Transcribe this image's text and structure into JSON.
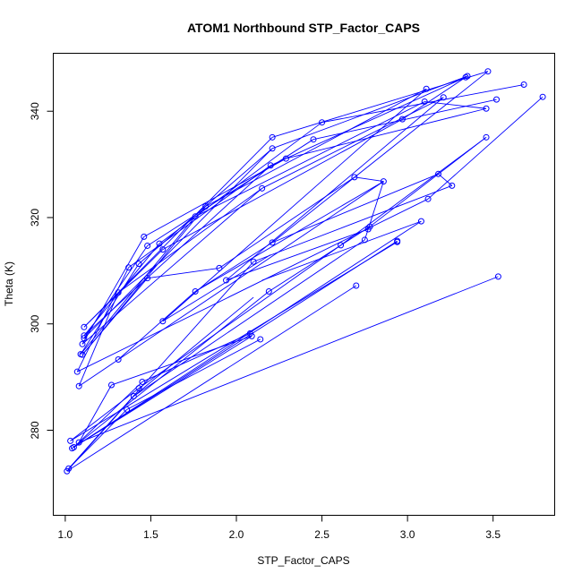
{
  "chart_data": {
    "type": "scatter",
    "title": "ATOM1 Northbound STP_Factor_CAPS",
    "xlabel": "STP_Factor_CAPS",
    "ylabel": "Theta (K)",
    "xlim": [
      0.93,
      3.86
    ],
    "ylim": [
      264.0,
      350.9
    ],
    "xticks": [
      1.0,
      1.5,
      2.0,
      2.5,
      3.0,
      3.5
    ],
    "xtick_labels": [
      "1.0",
      "1.5",
      "2.0",
      "2.5",
      "3.0",
      "3.5"
    ],
    "yticks": [
      280,
      300,
      320,
      340
    ],
    "ytick_labels": [
      "280",
      "300",
      "320",
      "340"
    ],
    "grid": false,
    "legend": "none",
    "series_color": "#0000ff",
    "marker": "open-circle",
    "connect_points": true,
    "points": [
      [
        1.01,
        272.3
      ],
      [
        1.02,
        272.8
      ],
      [
        1.03,
        278.0
      ],
      [
        1.04,
        276.6
      ],
      [
        1.05,
        276.8
      ],
      [
        1.08,
        277.7
      ],
      [
        1.07,
        291.0
      ],
      [
        1.08,
        288.3
      ],
      [
        1.09,
        294.3
      ],
      [
        1.1,
        294.2
      ],
      [
        1.1,
        296.2
      ],
      [
        1.11,
        297.3
      ],
      [
        1.11,
        297.8
      ],
      [
        1.11,
        299.4
      ],
      [
        1.27,
        288.5
      ],
      [
        1.31,
        293.3
      ],
      [
        1.31,
        305.9
      ],
      [
        1.36,
        283.9
      ],
      [
        1.37,
        310.6
      ],
      [
        1.4,
        286.4
      ],
      [
        1.43,
        287.9
      ],
      [
        1.43,
        311.3
      ],
      [
        1.45,
        289.1
      ],
      [
        1.46,
        316.4
      ],
      [
        1.48,
        308.6
      ],
      [
        1.48,
        314.7
      ],
      [
        1.55,
        315.1
      ],
      [
        1.57,
        300.5
      ],
      [
        1.57,
        314.0
      ],
      [
        1.76,
        306.1
      ],
      [
        1.76,
        320.2
      ],
      [
        1.82,
        322.1
      ],
      [
        1.9,
        310.5
      ],
      [
        1.94,
        308.2
      ],
      [
        2.08,
        298.2
      ],
      [
        2.09,
        297.7
      ],
      [
        2.1,
        311.7
      ],
      [
        2.14,
        297.1
      ],
      [
        2.15,
        325.5
      ],
      [
        2.19,
        306.1
      ],
      [
        2.2,
        329.8
      ],
      [
        2.21,
        315.3
      ],
      [
        2.21,
        335.1
      ],
      [
        2.21,
        333.0
      ],
      [
        2.29,
        331.1
      ],
      [
        2.45,
        334.7
      ],
      [
        2.5,
        337.9
      ],
      [
        2.61,
        314.8
      ],
      [
        2.7,
        307.2
      ],
      [
        2.69,
        327.6
      ],
      [
        2.75,
        315.8
      ],
      [
        2.77,
        317.8
      ],
      [
        2.78,
        318.3
      ],
      [
        2.86,
        326.8
      ],
      [
        2.94,
        315.4
      ],
      [
        2.94,
        315.6
      ],
      [
        2.97,
        338.5
      ],
      [
        3.08,
        319.3
      ],
      [
        3.1,
        341.8
      ],
      [
        3.11,
        344.2
      ],
      [
        3.12,
        323.5
      ],
      [
        3.18,
        328.2
      ],
      [
        3.21,
        342.6
      ],
      [
        3.26,
        326.0
      ],
      [
        3.34,
        346.4
      ],
      [
        3.35,
        346.6
      ],
      [
        3.46,
        340.5
      ],
      [
        3.46,
        335.1
      ],
      [
        3.47,
        347.5
      ],
      [
        3.52,
        342.2
      ],
      [
        3.53,
        308.9
      ],
      [
        3.68,
        345.0
      ],
      [
        3.79,
        342.7
      ]
    ],
    "segments": [
      [
        [
          1.01,
          272.3
        ],
        [
          2.7,
          307.2
        ]
      ],
      [
        [
          1.02,
          272.8
        ],
        [
          2.1,
          311.7
        ]
      ],
      [
        [
          1.03,
          278.0
        ],
        [
          2.94,
          315.4
        ]
      ],
      [
        [
          1.04,
          276.6
        ],
        [
          2.94,
          315.6
        ]
      ],
      [
        [
          1.05,
          276.8
        ],
        [
          3.08,
          319.3
        ]
      ],
      [
        [
          1.08,
          277.7
        ],
        [
          3.53,
          308.9
        ]
      ],
      [
        [
          1.04,
          276.6
        ],
        [
          2.19,
          306.1
        ]
      ],
      [
        [
          1.05,
          276.8
        ],
        [
          2.09,
          297.7
        ]
      ],
      [
        [
          1.08,
          277.7
        ],
        [
          1.27,
          288.5
        ]
      ],
      [
        [
          1.02,
          272.8
        ],
        [
          1.36,
          283.9
        ]
      ],
      [
        [
          1.01,
          272.3
        ],
        [
          1.4,
          286.4
        ]
      ],
      [
        [
          1.03,
          278.0
        ],
        [
          1.43,
          287.9
        ]
      ],
      [
        [
          1.05,
          276.8
        ],
        [
          1.45,
          289.1
        ]
      ],
      [
        [
          1.45,
          289.1
        ],
        [
          2.08,
          298.2
        ]
      ],
      [
        [
          1.36,
          283.9
        ],
        [
          2.14,
          297.1
        ]
      ],
      [
        [
          1.43,
          287.9
        ],
        [
          2.61,
          314.8
        ]
      ],
      [
        [
          1.4,
          286.4
        ],
        [
          2.75,
          315.8
        ]
      ],
      [
        [
          1.08,
          288.3
        ],
        [
          2.86,
          326.8
        ]
      ],
      [
        [
          1.07,
          291.0
        ],
        [
          3.12,
          323.5
        ]
      ],
      [
        [
          1.08,
          288.3
        ],
        [
          1.31,
          305.9
        ]
      ],
      [
        [
          1.07,
          291.0
        ],
        [
          1.37,
          310.6
        ]
      ],
      [
        [
          1.09,
          294.3
        ],
        [
          1.43,
          311.3
        ]
      ],
      [
        [
          1.1,
          294.2
        ],
        [
          1.48,
          308.6
        ]
      ],
      [
        [
          1.1,
          296.2
        ],
        [
          1.46,
          316.4
        ]
      ],
      [
        [
          1.11,
          297.3
        ],
        [
          1.48,
          314.7
        ]
      ],
      [
        [
          1.11,
          297.8
        ],
        [
          1.55,
          315.1
        ]
      ],
      [
        [
          1.11,
          299.4
        ],
        [
          1.57,
          314.0
        ]
      ],
      [
        [
          1.09,
          294.3
        ],
        [
          1.76,
          320.2
        ]
      ],
      [
        [
          1.1,
          294.2
        ],
        [
          1.82,
          322.1
        ]
      ],
      [
        [
          1.1,
          296.2
        ],
        [
          2.15,
          325.5
        ]
      ],
      [
        [
          1.11,
          297.3
        ],
        [
          2.21,
          333.0
        ]
      ],
      [
        [
          1.11,
          297.8
        ],
        [
          2.2,
          329.8
        ]
      ],
      [
        [
          1.11,
          299.4
        ],
        [
          2.21,
          335.1
        ]
      ],
      [
        [
          1.57,
          300.5
        ],
        [
          2.2,
          313.0
        ]
      ],
      [
        [
          1.31,
          293.3
        ],
        [
          1.76,
          306.1
        ]
      ],
      [
        [
          1.76,
          306.1
        ],
        [
          2.21,
          315.3
        ]
      ],
      [
        [
          1.48,
          308.6
        ],
        [
          1.9,
          310.5
        ]
      ],
      [
        [
          1.9,
          310.5
        ],
        [
          2.69,
          327.6
        ]
      ],
      [
        [
          1.94,
          308.2
        ],
        [
          2.77,
          317.8
        ]
      ],
      [
        [
          2.15,
          308.2
        ],
        [
          3.08,
          319.3
        ]
      ],
      [
        [
          2.1,
          311.7
        ],
        [
          3.26,
          326.0
        ]
      ],
      [
        [
          2.19,
          306.1
        ],
        [
          2.78,
          318.3
        ]
      ],
      [
        [
          2.21,
          315.3
        ],
        [
          3.18,
          328.2
        ]
      ],
      [
        [
          1.46,
          316.4
        ],
        [
          2.29,
          331.1
        ]
      ],
      [
        [
          1.48,
          314.7
        ],
        [
          2.45,
          334.7
        ]
      ],
      [
        [
          1.55,
          315.1
        ],
        [
          2.5,
          337.9
        ]
      ],
      [
        [
          1.57,
          314.0
        ],
        [
          2.97,
          338.5
        ]
      ],
      [
        [
          1.76,
          320.2
        ],
        [
          3.1,
          341.8
        ]
      ],
      [
        [
          1.82,
          322.1
        ],
        [
          3.11,
          344.2
        ]
      ],
      [
        [
          2.15,
          325.5
        ],
        [
          3.21,
          342.6
        ]
      ],
      [
        [
          2.2,
          329.8
        ],
        [
          3.34,
          346.4
        ]
      ],
      [
        [
          2.21,
          333.0
        ],
        [
          3.35,
          346.6
        ]
      ],
      [
        [
          2.21,
          335.1
        ],
        [
          3.47,
          347.5
        ]
      ],
      [
        [
          2.29,
          331.1
        ],
        [
          3.46,
          340.5
        ]
      ],
      [
        [
          2.45,
          334.7
        ],
        [
          3.52,
          342.2
        ]
      ],
      [
        [
          2.5,
          337.9
        ],
        [
          3.68,
          345.0
        ]
      ],
      [
        [
          2.61,
          314.8
        ],
        [
          3.46,
          335.1
        ]
      ],
      [
        [
          2.69,
          327.6
        ],
        [
          2.86,
          326.8
        ]
      ],
      [
        [
          2.75,
          315.8
        ],
        [
          2.86,
          326.8
        ]
      ],
      [
        [
          3.18,
          328.2
        ],
        [
          3.26,
          326.0
        ]
      ],
      [
        [
          2.97,
          338.5
        ],
        [
          3.35,
          346.6
        ]
      ],
      [
        [
          3.1,
          341.8
        ],
        [
          3.46,
          340.5
        ]
      ],
      [
        [
          3.12,
          323.5
        ],
        [
          3.79,
          342.7
        ]
      ],
      [
        [
          2.78,
          318.3
        ],
        [
          3.46,
          335.1
        ]
      ],
      [
        [
          1.37,
          310.6
        ],
        [
          2.2,
          329.8
        ]
      ],
      [
        [
          1.43,
          311.3
        ],
        [
          2.21,
          333.0
        ]
      ],
      [
        [
          1.31,
          305.9
        ],
        [
          2.15,
          325.5
        ]
      ],
      [
        [
          1.76,
          306.1
        ],
        [
          2.86,
          326.8
        ]
      ],
      [
        [
          1.94,
          308.2
        ],
        [
          3.21,
          342.6
        ]
      ],
      [
        [
          2.21,
          315.3
        ],
        [
          3.47,
          347.5
        ]
      ],
      [
        [
          1.57,
          300.5
        ],
        [
          3.11,
          344.2
        ]
      ],
      [
        [
          1.4,
          286.4
        ],
        [
          2.1,
          305.0
        ]
      ],
      [
        [
          1.27,
          288.5
        ],
        [
          2.09,
          297.7
        ]
      ]
    ]
  }
}
